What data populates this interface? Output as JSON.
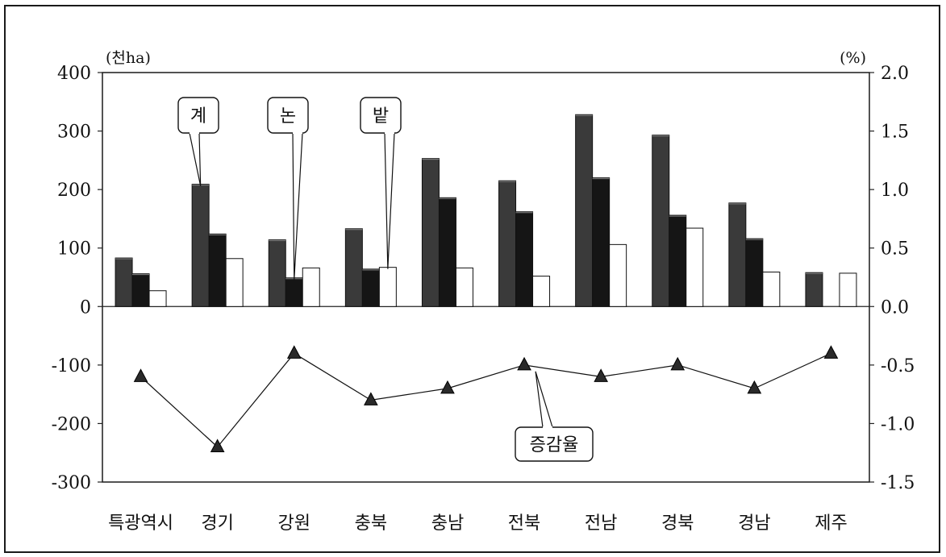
{
  "chart_data": {
    "type": "bar",
    "categories": [
      "특광역시",
      "경기",
      "강원",
      "충북",
      "충남",
      "전북",
      "전남",
      "경북",
      "경남",
      "제주"
    ],
    "series": [
      {
        "name": "계",
        "axis": "left",
        "values": [
          83,
          209,
          114,
          133,
          253,
          215,
          328,
          293,
          177,
          58
        ],
        "color": "#3a3a3a"
      },
      {
        "name": "논",
        "axis": "left",
        "values": [
          56,
          124,
          49,
          64,
          186,
          162,
          220,
          156,
          116,
          0
        ],
        "color": "#151515"
      },
      {
        "name": "밭",
        "axis": "left",
        "values": [
          27,
          82,
          66,
          67,
          66,
          52,
          106,
          134,
          59,
          57
        ],
        "color": "#ffffff"
      },
      {
        "name": "증감율",
        "axis": "right",
        "type": "line",
        "marker": "triangle",
        "values": [
          -0.6,
          -1.2,
          -0.4,
          -0.8,
          -0.7,
          -0.5,
          -0.6,
          -0.5,
          -0.7,
          -0.4
        ],
        "color": "#111111"
      }
    ],
    "left_axis": {
      "unit": "(천ha)",
      "ylim": [
        -300,
        400
      ],
      "ticks": [
        400,
        300,
        200,
        100,
        0,
        -100,
        -200,
        -300
      ]
    },
    "right_axis": {
      "unit": "(%)",
      "ylim": [
        -1.5,
        2.0
      ],
      "ticks": [
        "2.0",
        "1.5",
        "1.0",
        "0.5",
        "0.0",
        "-0.5",
        "-1.0",
        "-1.5"
      ]
    },
    "callouts": [
      "계",
      "논",
      "밭",
      "증감율"
    ],
    "grid": false,
    "legend": "callouts"
  }
}
